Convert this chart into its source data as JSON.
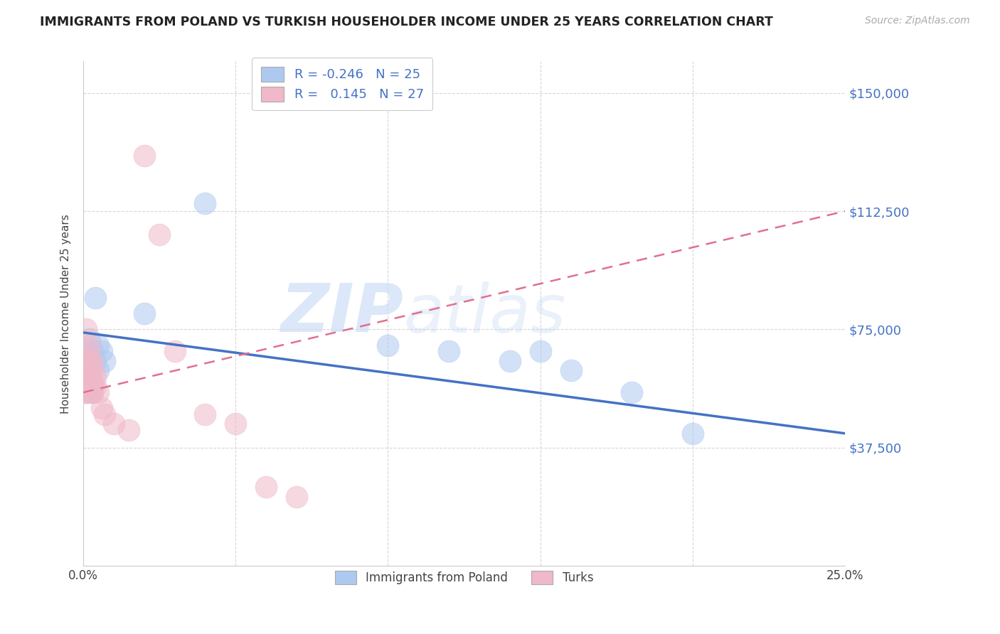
{
  "title": "IMMIGRANTS FROM POLAND VS TURKISH HOUSEHOLDER INCOME UNDER 25 YEARS CORRELATION CHART",
  "source": "Source: ZipAtlas.com",
  "ylabel": "Householder Income Under 25 years",
  "legend_label1": "Immigrants from Poland",
  "legend_label2": "Turks",
  "yticks": [
    0,
    37500,
    75000,
    112500,
    150000
  ],
  "ytick_labels": [
    "",
    "$37,500",
    "$75,000",
    "$112,500",
    "$150,000"
  ],
  "xlim": [
    0.0,
    0.25
  ],
  "ylim": [
    0,
    160000
  ],
  "watermark_zip": "ZIP",
  "watermark_atlas": "atlas",
  "poland_color": "#aec9f0",
  "turk_color": "#f0b8c8",
  "poland_line_color": "#4472c4",
  "turk_line_color": "#e07090",
  "poland_scatter": [
    [
      0.001,
      68000
    ],
    [
      0.001,
      62000
    ],
    [
      0.001,
      58000
    ],
    [
      0.001,
      55000
    ],
    [
      0.002,
      72000
    ],
    [
      0.002,
      65000
    ],
    [
      0.002,
      60000
    ],
    [
      0.003,
      68000
    ],
    [
      0.003,
      57000
    ],
    [
      0.003,
      55000
    ],
    [
      0.004,
      85000
    ],
    [
      0.004,
      65000
    ],
    [
      0.005,
      70000
    ],
    [
      0.005,
      62000
    ],
    [
      0.006,
      68000
    ],
    [
      0.007,
      65000
    ],
    [
      0.02,
      80000
    ],
    [
      0.04,
      115000
    ],
    [
      0.1,
      70000
    ],
    [
      0.12,
      68000
    ],
    [
      0.14,
      65000
    ],
    [
      0.15,
      68000
    ],
    [
      0.16,
      62000
    ],
    [
      0.18,
      55000
    ],
    [
      0.2,
      42000
    ]
  ],
  "turk_scatter": [
    [
      0.001,
      75000
    ],
    [
      0.001,
      68000
    ],
    [
      0.001,
      65000
    ],
    [
      0.001,
      62000
    ],
    [
      0.001,
      55000
    ],
    [
      0.002,
      70000
    ],
    [
      0.002,
      65000
    ],
    [
      0.002,
      60000
    ],
    [
      0.002,
      55000
    ],
    [
      0.003,
      65000
    ],
    [
      0.003,
      62000
    ],
    [
      0.003,
      58000
    ],
    [
      0.003,
      55000
    ],
    [
      0.004,
      60000
    ],
    [
      0.004,
      57000
    ],
    [
      0.005,
      55000
    ],
    [
      0.006,
      50000
    ],
    [
      0.007,
      48000
    ],
    [
      0.01,
      45000
    ],
    [
      0.015,
      43000
    ],
    [
      0.02,
      130000
    ],
    [
      0.025,
      105000
    ],
    [
      0.03,
      68000
    ],
    [
      0.04,
      48000
    ],
    [
      0.05,
      45000
    ],
    [
      0.06,
      25000
    ],
    [
      0.07,
      22000
    ]
  ]
}
